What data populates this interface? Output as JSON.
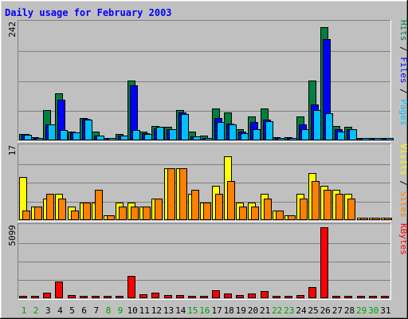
{
  "chart_data": [
    {
      "type": "bar",
      "title": "Daily usage for February 2003",
      "categories": [
        "1",
        "2",
        "3",
        "4",
        "5",
        "6",
        "7",
        "8",
        "9",
        "10",
        "11",
        "12",
        "13",
        "14",
        "15",
        "16",
        "17",
        "18",
        "19",
        "20",
        "21",
        "22",
        "23",
        "24",
        "25",
        "26",
        "27",
        "28",
        "29",
        "30",
        "31"
      ],
      "y_max_label": "242",
      "ylim": [
        0,
        242
      ],
      "legend": [
        "Pages",
        "Files",
        "Hits"
      ],
      "legend_separator": " / ",
      "series": [
        {
          "name": "Hits",
          "color": "#008040",
          "values": [
            12,
            5,
            61,
            97,
            17,
            45,
            16,
            4,
            11,
            124,
            16,
            28,
            26,
            61,
            17,
            8,
            65,
            57,
            21,
            48,
            65,
            5,
            5,
            48,
            124,
            236,
            28,
            27,
            0,
            0,
            0
          ]
        },
        {
          "name": "Files",
          "color": "#0000ff",
          "values": [
            12,
            3,
            32,
            84,
            15,
            43,
            8,
            2,
            9,
            113,
            14,
            23,
            21,
            57,
            6,
            4,
            45,
            33,
            16,
            36,
            41,
            3,
            2,
            32,
            74,
            211,
            22,
            22,
            0,
            0,
            0
          ]
        },
        {
          "name": "Pages",
          "color": "#00c0ff",
          "values": [
            10,
            2,
            32,
            20,
            15,
            41,
            8,
            2,
            8,
            20,
            11,
            26,
            21,
            54,
            6,
            3,
            37,
            31,
            13,
            22,
            38,
            3,
            2,
            21,
            61,
            55,
            17,
            22,
            0,
            0,
            0
          ]
        }
      ]
    },
    {
      "type": "bar",
      "title": "",
      "categories": [
        "1",
        "2",
        "3",
        "4",
        "5",
        "6",
        "7",
        "8",
        "9",
        "10",
        "11",
        "12",
        "13",
        "14",
        "15",
        "16",
        "17",
        "18",
        "19",
        "20",
        "21",
        "22",
        "23",
        "24",
        "25",
        "26",
        "27",
        "28",
        "29",
        "30",
        "31"
      ],
      "y_max_label": "17",
      "ylim": [
        0,
        17
      ],
      "legend": [
        "Sites",
        "Visits"
      ],
      "legend_separator": " / ",
      "series": [
        {
          "name": "Visits",
          "color": "#ffff00",
          "values": [
            10,
            3,
            5,
            6,
            3,
            4,
            4,
            1,
            4,
            4,
            3,
            5,
            12,
            12,
            6,
            4,
            8,
            15,
            4,
            4,
            6,
            2,
            1,
            6,
            11,
            8,
            7,
            6,
            0,
            0,
            0
          ]
        },
        {
          "name": "Sites",
          "color": "#ff8000",
          "values": [
            2,
            3,
            6,
            5,
            2,
            4,
            7,
            1,
            3,
            3,
            3,
            5,
            12,
            12,
            7,
            4,
            6,
            9,
            3,
            3,
            5,
            2,
            1,
            5,
            9,
            7,
            6,
            5,
            0,
            0,
            0
          ]
        }
      ]
    },
    {
      "type": "bar",
      "title": "",
      "categories": [
        "1",
        "2",
        "3",
        "4",
        "5",
        "6",
        "7",
        "8",
        "9",
        "10",
        "11",
        "12",
        "13",
        "14",
        "15",
        "16",
        "17",
        "18",
        "19",
        "20",
        "21",
        "22",
        "23",
        "24",
        "25",
        "26",
        "27",
        "28",
        "29",
        "30",
        "31"
      ],
      "y_max_label": "5099",
      "ylim": [
        0,
        5099
      ],
      "legend": [
        "KBytes"
      ],
      "legend_separator": "",
      "series": [
        {
          "name": "KBytes",
          "color": "#ff0000",
          "values": [
            110,
            40,
            370,
            1170,
            170,
            110,
            50,
            30,
            50,
            1570,
            220,
            360,
            180,
            190,
            100,
            40,
            530,
            270,
            170,
            270,
            460,
            40,
            60,
            190,
            740,
            5099,
            120,
            120,
            0,
            0,
            0
          ]
        }
      ]
    }
  ],
  "weekend_days": [
    "1",
    "2",
    "8",
    "9",
    "15",
    "16",
    "22",
    "23",
    "29",
    "30"
  ],
  "colors": {
    "background": "#c0c0c0",
    "plot_bg": "#c0c0c0",
    "title": "#0000ff",
    "weekday": "#000000",
    "weekend": "#00a000"
  }
}
